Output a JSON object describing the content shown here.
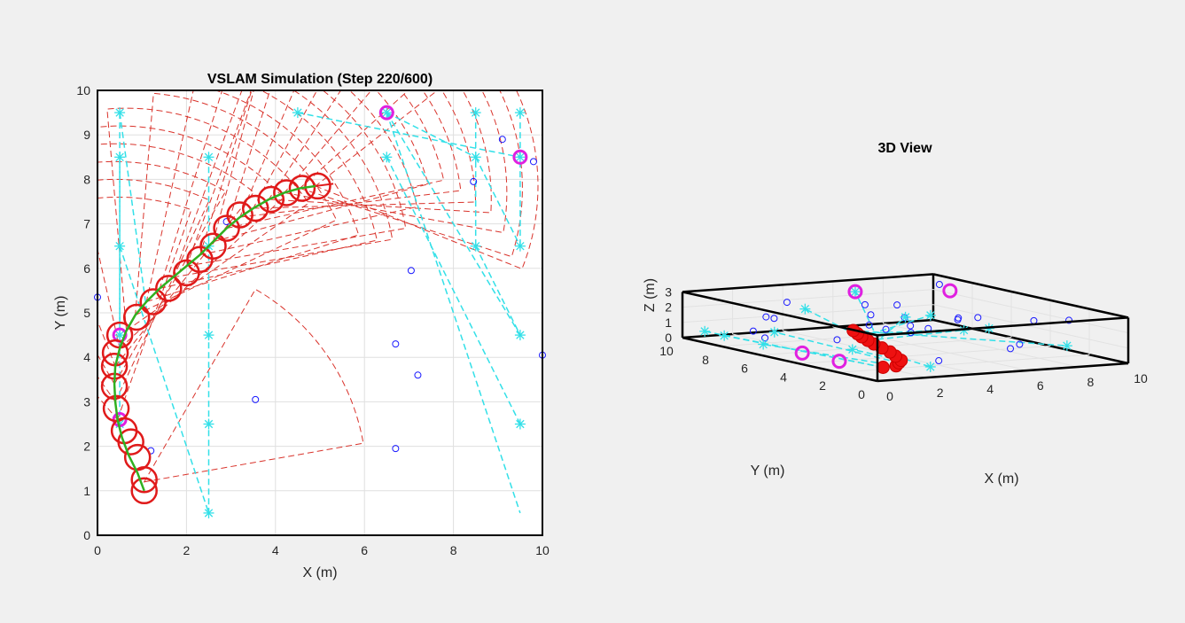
{
  "chart_data": [
    {
      "type": "scatter",
      "title": "VSLAM Simulation (Step 220/600)",
      "xlabel": "X (m)",
      "ylabel": "Y (m)",
      "xlim": [
        0,
        10
      ],
      "ylim": [
        0,
        10
      ],
      "xticks": [
        "0",
        "2",
        "4",
        "6",
        "8",
        "10"
      ],
      "yticks": [
        "0",
        "1",
        "2",
        "3",
        "4",
        "5",
        "6",
        "7",
        "8",
        "9",
        "10"
      ],
      "grid": true,
      "trajectory": {
        "x": [
          1.05,
          0.9,
          0.7,
          0.55,
          0.45,
          0.4,
          0.38,
          0.4,
          0.5,
          0.65,
          0.85,
          1.1,
          1.4,
          1.7,
          2.0,
          2.3,
          2.6,
          2.9,
          3.2,
          3.5,
          3.85,
          4.2,
          4.55,
          4.9
        ],
        "y": [
          1.0,
          1.4,
          1.8,
          2.2,
          2.6,
          3.0,
          3.4,
          3.8,
          4.2,
          4.6,
          4.95,
          5.25,
          5.55,
          5.8,
          6.05,
          6.3,
          6.6,
          6.9,
          7.15,
          7.35,
          7.55,
          7.7,
          7.8,
          7.85
        ]
      },
      "pose_circles": {
        "x": [
          1.05,
          1.05,
          0.9,
          0.75,
          0.6,
          0.42,
          0.38,
          0.38,
          0.4,
          0.5,
          0.88,
          1.25,
          1.6,
          2.0,
          2.3,
          2.6,
          2.9,
          3.2,
          3.55,
          3.9,
          4.25,
          4.6,
          4.95
        ],
        "y": [
          1.0,
          1.25,
          1.75,
          2.1,
          2.35,
          2.85,
          3.35,
          3.8,
          4.1,
          4.5,
          4.9,
          5.25,
          5.55,
          5.9,
          6.2,
          6.5,
          6.9,
          7.2,
          7.35,
          7.55,
          7.7,
          7.8,
          7.85
        ]
      },
      "observed_landmarks": {
        "x": [
          0.5,
          0.5,
          0.5,
          0.5,
          0.5,
          2.5,
          2.5,
          2.5,
          2.5,
          2.5,
          4.5,
          6.5,
          6.5,
          8.5,
          8.5,
          8.5,
          9.5,
          9.5,
          9.5,
          9.5,
          9.5
        ],
        "y": [
          9.5,
          8.5,
          6.5,
          4.5,
          2.5,
          8.5,
          4.5,
          2.5,
          0.5,
          6.5,
          9.5,
          9.5,
          8.5,
          9.5,
          8.5,
          6.5,
          9.5,
          8.5,
          6.5,
          4.5,
          2.5
        ]
      },
      "cyan_links": [
        [
          [
            0.5,
            9.5
          ],
          [
            0.5,
            4.5
          ]
        ],
        [
          [
            0.5,
            8.5
          ],
          [
            0.5,
            2.5
          ]
        ],
        [
          [
            0.5,
            9.5
          ],
          [
            1.1,
            5.1
          ]
        ],
        [
          [
            2.5,
            8.5
          ],
          [
            2.5,
            0.5
          ]
        ],
        [
          [
            0.5,
            6.5
          ],
          [
            2.5,
            0.5
          ]
        ],
        [
          [
            6.5,
            9.5
          ],
          [
            9.5,
            4.5
          ]
        ],
        [
          [
            6.5,
            9.5
          ],
          [
            9.5,
            0.5
          ]
        ],
        [
          [
            6.5,
            8.5
          ],
          [
            9.5,
            2.5
          ]
        ],
        [
          [
            8.5,
            9.5
          ],
          [
            8.5,
            6.5
          ]
        ],
        [
          [
            8.5,
            6.5
          ],
          [
            9.5,
            4.5
          ]
        ],
        [
          [
            9.5,
            9.5
          ],
          [
            9.5,
            6.5
          ]
        ],
        [
          [
            8.5,
            8.5
          ],
          [
            9.5,
            6.5
          ]
        ],
        [
          [
            4.5,
            9.5
          ],
          [
            9.5,
            8.5
          ]
        ],
        [
          [
            6.5,
            9.5
          ],
          [
            8.5,
            8.5
          ]
        ]
      ],
      "highlighted_landmarks": {
        "x": [
          6.5,
          9.5,
          0.5,
          0.5
        ],
        "y": [
          9.5,
          8.5,
          4.5,
          2.6
        ]
      },
      "unobserved_landmarks": {
        "x": [
          0.0,
          2.9,
          3.55,
          6.7,
          6.7,
          7.05,
          7.2,
          8.45,
          9.1,
          9.8,
          10.0,
          1.2
        ],
        "y": [
          5.35,
          7.05,
          3.05,
          4.3,
          1.95,
          5.95,
          3.6,
          7.95,
          8.9,
          8.4,
          4.05,
          1.9
        ]
      },
      "fov_wedge": {
        "origin": [
          1.05,
          1.2
        ],
        "range": 5.0,
        "angle_start_deg": 10,
        "angle_end_deg": 60
      }
    },
    {
      "type": "scatter",
      "title": "3D View",
      "xlabel": "X (m)",
      "ylabel": "Y (m)",
      "zlabel": "Z (m)",
      "xlim": [
        0,
        10
      ],
      "ylim": [
        0,
        10
      ],
      "zlim": [
        0,
        3
      ],
      "xticks": [
        "0",
        "2",
        "4",
        "6",
        "8",
        "10"
      ],
      "yticks": [
        "0",
        "2",
        "4",
        "6",
        "8",
        "10"
      ],
      "zticks": [
        "0",
        "1",
        "2",
        "3"
      ],
      "trajectory": {
        "x": [
          1.0,
          1.6,
          2.1,
          2.5,
          2.9,
          3.3,
          3.6,
          3.9,
          4.2,
          4.5,
          4.8,
          5.1
        ],
        "y": [
          1.0,
          1.1,
          1.6,
          2.0,
          2.8,
          3.6,
          4.4,
          5.2,
          5.9,
          6.6,
          7.2,
          7.8
        ],
        "z": [
          0.5,
          0.5,
          0.5,
          0.5,
          0.5,
          0.5,
          0.5,
          0.5,
          0.5,
          0.5,
          0.5,
          0.5
        ]
      },
      "highlighted_landmarks": {
        "x": [
          6.5,
          9.5,
          0.5,
          0.5
        ],
        "y": [
          9.5,
          8.5,
          4.5,
          2.6
        ],
        "z": [
          2.4,
          2.4,
          0.5,
          0.5
        ]
      },
      "observed_landmarks": {
        "x": [
          0.5,
          0.5,
          2.5,
          2.5,
          2.5,
          4.5,
          6.5,
          8.5,
          8.5,
          9.5,
          9.5,
          9.5,
          0.5
        ],
        "y": [
          9.5,
          6.5,
          8.5,
          4.5,
          0.5,
          9.5,
          9.5,
          9.5,
          6.5,
          9.5,
          6.5,
          2.5,
          8.5
        ],
        "z": [
          0.5,
          0.5,
          0.5,
          0.5,
          0.5,
          1.5,
          2.4,
          0.5,
          0.5,
          0.5,
          0.5,
          0.5,
          0.5
        ]
      },
      "unobserved_landmarks": {
        "x": [
          0.0,
          1.0,
          2.0,
          3.0,
          4.0,
          5.0,
          6.0,
          7.0,
          8.0,
          9.0,
          1.5,
          3.5,
          5.5,
          7.5,
          9.5,
          2.2,
          4.4,
          6.6,
          8.8,
          0.8,
          3.0,
          5.2,
          7.4,
          9.6,
          1.8
        ],
        "y": [
          5.3,
          7.0,
          3.0,
          4.2,
          2.0,
          6.0,
          3.6,
          8.0,
          8.9,
          8.4,
          4.0,
          1.9,
          7.5,
          5.5,
          2.4,
          9.2,
          6.3,
          1.2,
          3.3,
          6.8,
          8.5,
          5.0,
          2.7,
          7.2,
          0.6
        ],
        "z": [
          2.6,
          2.1,
          1.5,
          2.8,
          0.3,
          1.1,
          2.3,
          1.9,
          0.7,
          2.9,
          1.4,
          2.5,
          0.9,
          1.7,
          2.2,
          0.4,
          2.7,
          1.3,
          2.0,
          0.8,
          2.4,
          1.6,
          0.5,
          1.0,
          2.8
        ]
      }
    }
  ]
}
